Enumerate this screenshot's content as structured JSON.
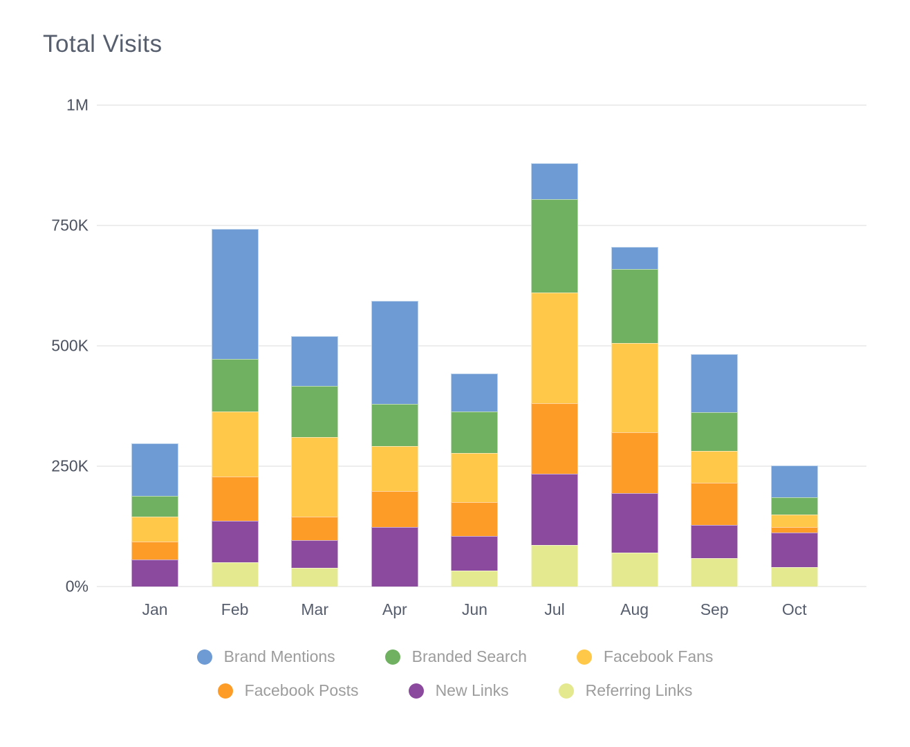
{
  "title": "Total Visits",
  "colors": {
    "brand_mentions": "#6E9BD3",
    "branded_search": "#6FB061",
    "facebook_fans": "#FFC848",
    "facebook_posts": "#FD9D28",
    "new_links": "#8C4A9E",
    "referring_links": "#E4E88F",
    "gridline": "#EDEDED",
    "title_text": "#575F6E",
    "axis_text": "#4C5260",
    "legend_text": "#9C9C9C"
  },
  "y_axis": {
    "ticks": [
      {
        "label": "1M",
        "value": 1000000
      },
      {
        "label": "750K",
        "value": 750000
      },
      {
        "label": "500K",
        "value": 500000
      },
      {
        "label": "250K",
        "value": 250000
      },
      {
        "label": "0%",
        "value": 0
      }
    ]
  },
  "chart_data": {
    "type": "bar",
    "stacked": true,
    "title": "Total Visits",
    "xlabel": "",
    "ylabel": "",
    "ylim": [
      0,
      1000000
    ],
    "grid": "horizontal",
    "legend_position": "bottom",
    "categories": [
      "Jan",
      "Feb",
      "Mar",
      "Apr",
      "Jun",
      "Jul",
      "Aug",
      "Sep",
      "Oct"
    ],
    "series": [
      {
        "name": "Brand Mentions",
        "color_key": "brand_mentions",
        "values": [
          109000,
          270000,
          104000,
          215000,
          79000,
          74000,
          46000,
          121000,
          67000
        ]
      },
      {
        "name": "Branded Search",
        "color_key": "branded_search",
        "values": [
          43000,
          110000,
          105000,
          88000,
          85000,
          194000,
          153000,
          81000,
          35000
        ]
      },
      {
        "name": "Facebook Fans",
        "color_key": "facebook_fans",
        "values": [
          52000,
          134000,
          166000,
          92000,
          103000,
          230000,
          186000,
          65000,
          26000
        ]
      },
      {
        "name": "Facebook Posts",
        "color_key": "facebook_posts",
        "values": [
          37000,
          93000,
          48000,
          75000,
          70000,
          147000,
          126000,
          88000,
          12000
        ]
      },
      {
        "name": "New Links",
        "color_key": "new_links",
        "values": [
          56000,
          85000,
          58000,
          124000,
          72000,
          148000,
          124000,
          69000,
          72000
        ]
      },
      {
        "name": "Referring Links",
        "color_key": "referring_links",
        "values": [
          0,
          51000,
          39000,
          0,
          33000,
          86000,
          70000,
          59000,
          40000
        ]
      }
    ],
    "stack_order_bottom_to_top": [
      "Referring Links",
      "New Links",
      "Facebook Posts",
      "Facebook Fans",
      "Branded Search",
      "Brand Mentions"
    ],
    "totals": [
      297000,
      743000,
      520000,
      594000,
      442000,
      879000,
      705000,
      483000,
      252000
    ],
    "legend_rows": [
      [
        "Brand Mentions",
        "Branded Search",
        "Facebook Fans"
      ],
      [
        "Facebook Posts",
        "New Links",
        "Referring Links"
      ]
    ]
  }
}
